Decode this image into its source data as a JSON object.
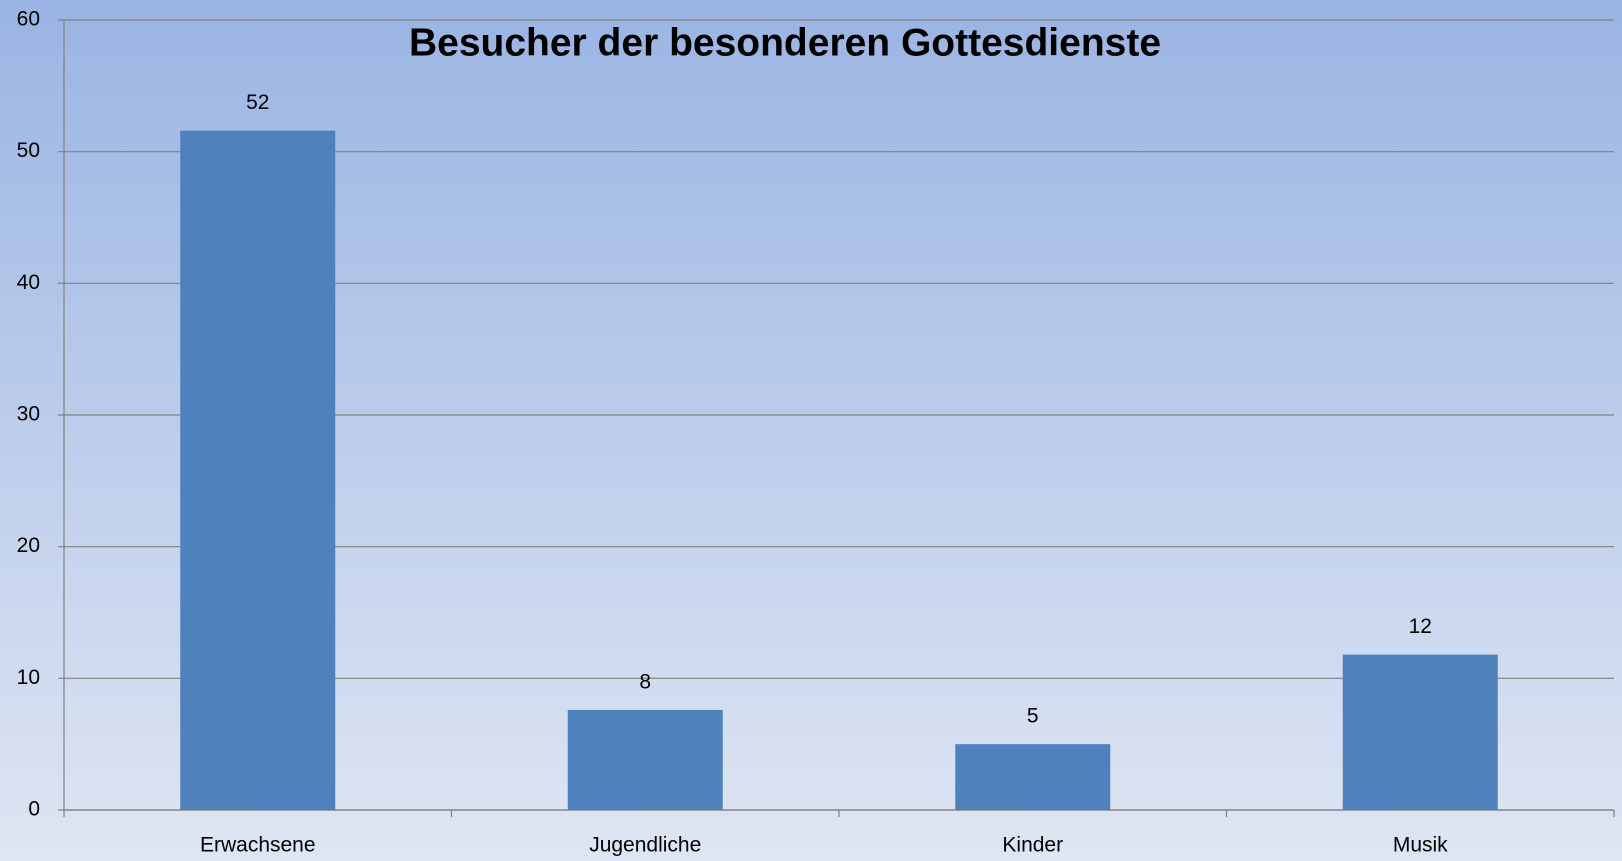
{
  "chart_data": {
    "type": "bar",
    "title": "Besucher der besonderen Gottesdienste",
    "categories": [
      "Erwachsene",
      "Jugendliche",
      "Kinder",
      "Musik"
    ],
    "values": [
      51.6,
      7.6,
      5,
      11.8
    ],
    "value_labels": [
      "52",
      "8",
      "5",
      "12"
    ],
    "color": "#4f81bd",
    "ylim": [
      0,
      60
    ],
    "yticks": [
      0,
      10,
      20,
      30,
      40,
      50,
      60
    ],
    "grid": true
  }
}
